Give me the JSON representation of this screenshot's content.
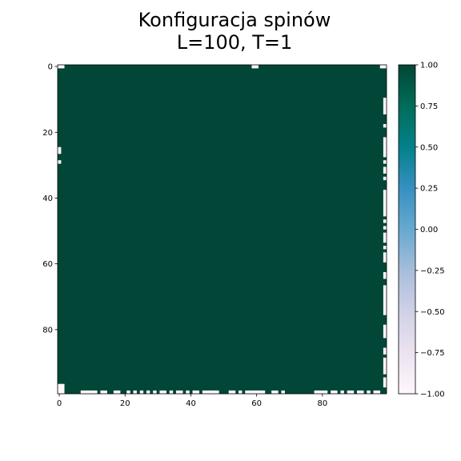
{
  "chart_data": {
    "type": "heatmap",
    "title_lines": [
      "Konfiguracja spinów",
      "L=100, T=1"
    ],
    "xlabel": "",
    "ylabel": "",
    "grid": false,
    "lattice_size": 100,
    "dominant_value": 1,
    "minority_value": -1,
    "x_ticks": [
      0,
      20,
      40,
      60,
      80
    ],
    "y_ticks": [
      0,
      20,
      40,
      60,
      80
    ],
    "x_range": [
      -0.5,
      99.5
    ],
    "y_range": [
      99.5,
      -0.5
    ],
    "minority_cells": [
      [
        0,
        0
      ],
      [
        1,
        0
      ],
      [
        59,
        0
      ],
      [
        60,
        0
      ],
      [
        98,
        0
      ],
      [
        99,
        0
      ],
      [
        0,
        25
      ],
      [
        0,
        26
      ],
      [
        0,
        29
      ],
      [
        99,
        10
      ],
      [
        99,
        11
      ],
      [
        99,
        12
      ],
      [
        99,
        13
      ],
      [
        99,
        14
      ],
      [
        99,
        18
      ],
      [
        99,
        22
      ],
      [
        99,
        23
      ],
      [
        99,
        24
      ],
      [
        99,
        25
      ],
      [
        99,
        26
      ],
      [
        99,
        27
      ],
      [
        99,
        29
      ],
      [
        99,
        31
      ],
      [
        99,
        32
      ],
      [
        99,
        34
      ],
      [
        99,
        38
      ],
      [
        99,
        39
      ],
      [
        99,
        40
      ],
      [
        99,
        41
      ],
      [
        99,
        42
      ],
      [
        99,
        43
      ],
      [
        99,
        44
      ],
      [
        99,
        45
      ],
      [
        99,
        47
      ],
      [
        99,
        49
      ],
      [
        99,
        51
      ],
      [
        99,
        52
      ],
      [
        99,
        53
      ],
      [
        99,
        55
      ],
      [
        99,
        57
      ],
      [
        99,
        58
      ],
      [
        99,
        59
      ],
      [
        99,
        63
      ],
      [
        99,
        64
      ],
      [
        99,
        67
      ],
      [
        99,
        68
      ],
      [
        99,
        69
      ],
      [
        99,
        70
      ],
      [
        99,
        71
      ],
      [
        99,
        72
      ],
      [
        99,
        73
      ],
      [
        99,
        74
      ],
      [
        99,
        75
      ],
      [
        99,
        79
      ],
      [
        99,
        80
      ],
      [
        99,
        81
      ],
      [
        99,
        82
      ],
      [
        99,
        86
      ],
      [
        99,
        87
      ],
      [
        99,
        89
      ],
      [
        99,
        90
      ],
      [
        99,
        91
      ],
      [
        99,
        92
      ],
      [
        99,
        93
      ],
      [
        99,
        95
      ],
      [
        99,
        96
      ],
      [
        99,
        97
      ],
      [
        0,
        97
      ],
      [
        1,
        97
      ],
      [
        0,
        98
      ],
      [
        1,
        98
      ],
      [
        0,
        99
      ],
      [
        1,
        99
      ],
      [
        7,
        99
      ],
      [
        8,
        99
      ],
      [
        9,
        99
      ],
      [
        10,
        99
      ],
      [
        11,
        99
      ],
      [
        13,
        99
      ],
      [
        14,
        99
      ],
      [
        17,
        99
      ],
      [
        18,
        99
      ],
      [
        21,
        99
      ],
      [
        23,
        99
      ],
      [
        25,
        99
      ],
      [
        27,
        99
      ],
      [
        29,
        99
      ],
      [
        31,
        99
      ],
      [
        32,
        99
      ],
      [
        34,
        99
      ],
      [
        36,
        99
      ],
      [
        37,
        99
      ],
      [
        39,
        99
      ],
      [
        41,
        99
      ],
      [
        42,
        99
      ],
      [
        44,
        99
      ],
      [
        45,
        99
      ],
      [
        46,
        99
      ],
      [
        47,
        99
      ],
      [
        48,
        99
      ],
      [
        52,
        99
      ],
      [
        53,
        99
      ],
      [
        55,
        99
      ],
      [
        57,
        99
      ],
      [
        58,
        99
      ],
      [
        59,
        99
      ],
      [
        60,
        99
      ],
      [
        61,
        99
      ],
      [
        62,
        99
      ],
      [
        65,
        99
      ],
      [
        66,
        99
      ],
      [
        68,
        99
      ],
      [
        78,
        99
      ],
      [
        79,
        99
      ],
      [
        80,
        99
      ],
      [
        81,
        99
      ],
      [
        83,
        99
      ],
      [
        84,
        99
      ],
      [
        86,
        99
      ],
      [
        88,
        99
      ],
      [
        89,
        99
      ],
      [
        91,
        99
      ],
      [
        92,
        99
      ],
      [
        94,
        99
      ],
      [
        96,
        99
      ],
      [
        97,
        99
      ]
    ],
    "colorbar": {
      "colormap": "PuBuGn",
      "range": [
        -1.0,
        1.0
      ],
      "ticks": [
        1.0,
        0.75,
        0.5,
        0.25,
        0.0,
        -0.25,
        -0.5,
        -0.75,
        -1.0
      ],
      "tick_labels": [
        "1.00",
        "0.75",
        "0.50",
        "0.25",
        "0.00",
        "−0.25",
        "−0.50",
        "−0.75",
        "−1.00"
      ],
      "color_stops": [
        "#fff7fb",
        "#ece2f0",
        "#d0d1e6",
        "#a6bddb",
        "#67a9cf",
        "#3690c0",
        "#02818a",
        "#016c59",
        "#014636"
      ]
    }
  }
}
